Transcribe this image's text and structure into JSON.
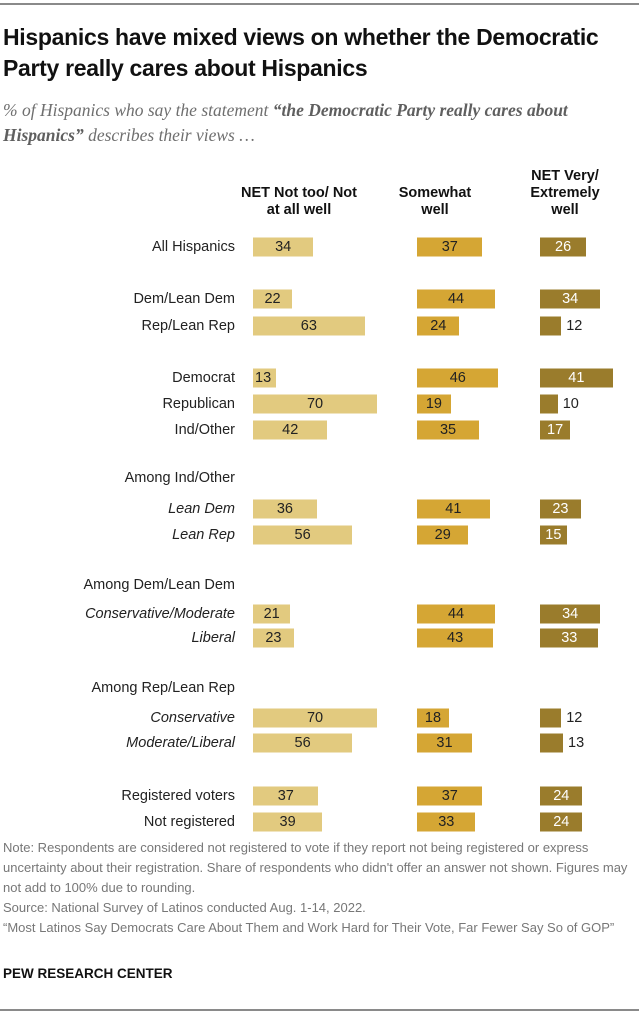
{
  "title": "Hispanics have mixed views on whether the Democratic Party really cares about Hispanics",
  "subtitle": {
    "pre": "% of Hispanics who say the statement ",
    "bold": "“the Democratic Party really cares about Hispanics”",
    "post": " describes their views …"
  },
  "chart_data": {
    "type": "bar",
    "orientation": "horizontal",
    "series": [
      {
        "name": "NET Not too/ Not at all well",
        "color": "#e2ca7f",
        "values": [
          34,
          22,
          63,
          13,
          70,
          42,
          36,
          56,
          21,
          23,
          70,
          56,
          37,
          39
        ]
      },
      {
        "name": "Somewhat well",
        "color": "#d5a634",
        "values": [
          37,
          44,
          24,
          46,
          19,
          35,
          41,
          29,
          44,
          43,
          18,
          31,
          37,
          33
        ]
      },
      {
        "name": "NET Very/ Extremely well",
        "color": "#9a7c2c",
        "values": [
          26,
          34,
          12,
          41,
          10,
          17,
          23,
          15,
          34,
          33,
          12,
          13,
          24,
          24
        ]
      }
    ],
    "categories": [
      "All Hispanics",
      "Dem/Lean Dem",
      "Rep/Lean Rep",
      "Democrat",
      "Republican",
      "Ind/Other",
      "Lean Dem",
      "Lean Rep",
      "Conservative/Moderate",
      "Liberal",
      "Conservative",
      "Moderate/Liberal",
      "Registered voters",
      "Not registered"
    ],
    "group_headings": [
      "Among Ind/Other",
      "Among Dem/Lean Dem",
      "Among Rep/Lean Rep"
    ]
  },
  "notes": [
    "Note: Respondents are considered not registered to vote if they report not being registered or express uncertainty about their registration. Share of respondents who didn't offer an answer not shown. Figures may not add to 100% due to rounding.",
    "Source: National Survey of Latinos conducted Aug. 1-14, 2022.",
    "“Most Latinos Say Democrats Care About Them and Work Hard for Their Vote, Far Fewer Say So of GOP”"
  ],
  "brand": "PEW RESEARCH CENTER"
}
